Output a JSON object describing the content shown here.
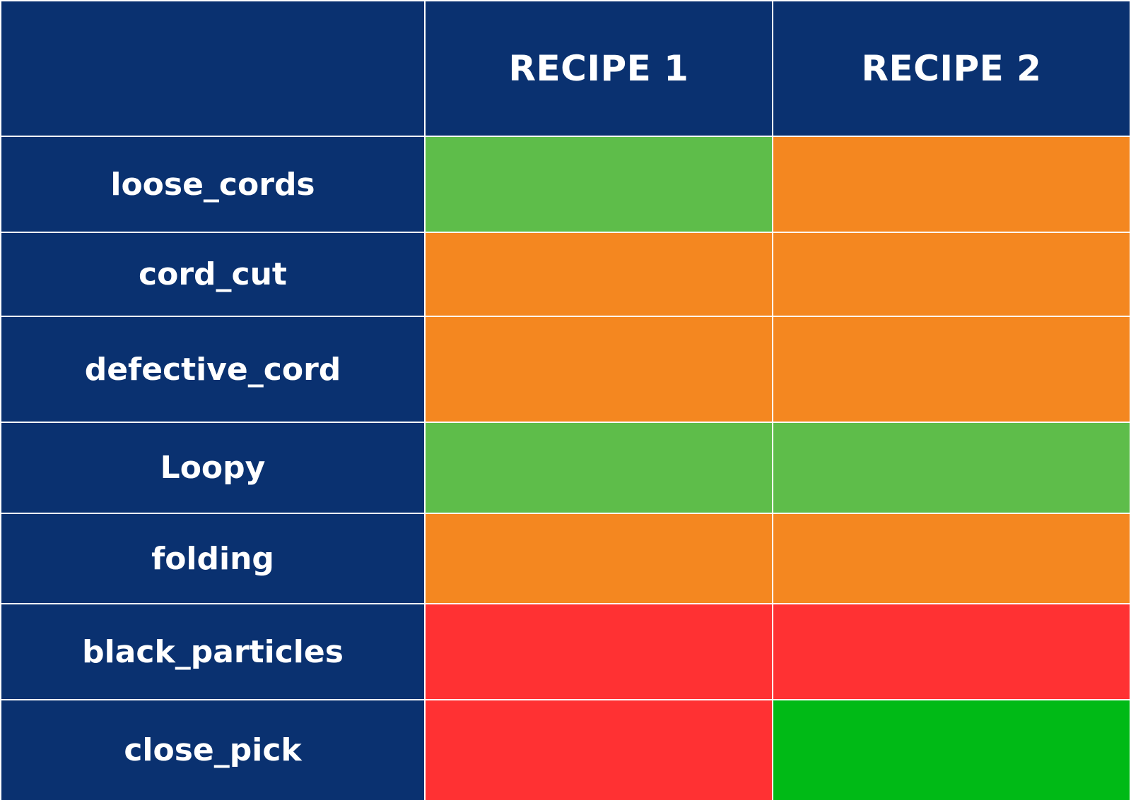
{
  "chart_data": {
    "type": "heatmap",
    "columns": [
      "RECIPE 1",
      "RECIPE 2"
    ],
    "rows": [
      {
        "label": "loose_cords",
        "values": [
          "#5EBD4A",
          "#F48720"
        ]
      },
      {
        "label": "cord_cut",
        "values": [
          "#F48720",
          "#F48720"
        ]
      },
      {
        "label": "defective_cord",
        "values": [
          "#F48720",
          "#F48720"
        ]
      },
      {
        "label": "Loopy",
        "values": [
          "#5EBD4A",
          "#5EBD4A"
        ]
      },
      {
        "label": "folding",
        "values": [
          "#F48720",
          "#F48720"
        ]
      },
      {
        "label": "black_particles",
        "values": [
          "#FF3133",
          "#FF3133"
        ]
      },
      {
        "label": "close_pick",
        "values": [
          "#FF3133",
          "#00BA16"
        ]
      }
    ]
  },
  "colors": {
    "header_bg": "#0A3170",
    "header_text": "#FFFFFF",
    "grid_line": "#FFFFFF"
  }
}
